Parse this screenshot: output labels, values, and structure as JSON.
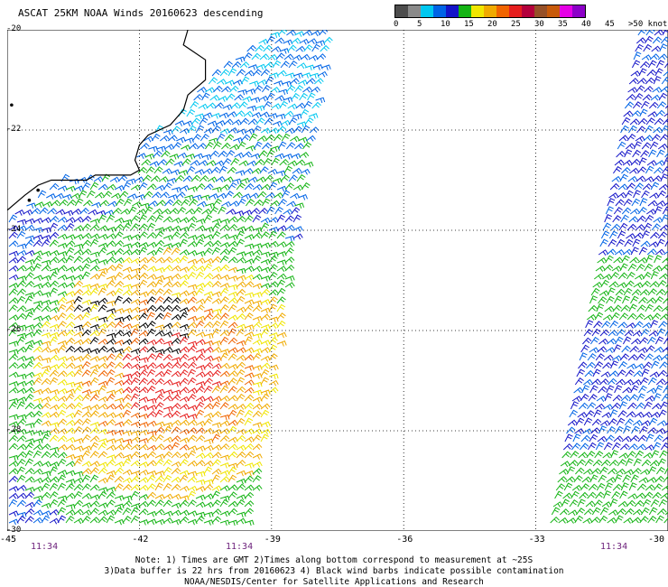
{
  "title": "ASCAT 25KM NOAA Winds 20160623 descending",
  "legend": {
    "labels": [
      "0",
      "5",
      "10",
      "15",
      "20",
      "25",
      "30",
      "35",
      "40",
      "45",
      ">50 knots"
    ],
    "colors": [
      "#4d4d4d",
      "#8a8a8a",
      "#00c8f0",
      "#0064e6",
      "#1414c8",
      "#14b414",
      "#f0e600",
      "#f0aa00",
      "#f06400",
      "#e61e1e",
      "#b4003c",
      "#965028",
      "#c85a0a",
      "#e600e6",
      "#8c00c8"
    ]
  },
  "map": {
    "lat_labels": [
      "-20",
      "-22",
      "-24",
      "-26",
      "-28",
      "-30"
    ],
    "lon_labels": [
      "-45",
      "-42",
      "-39",
      "-36",
      "-33",
      "-30"
    ],
    "lat_range": [
      -30,
      -20
    ],
    "lon_range": [
      -45,
      -30
    ],
    "coastline_color": "#000000",
    "grid": "dotted"
  },
  "pass_times": [
    "11:34",
    "11:34",
    "11:34"
  ],
  "notes": {
    "line1": "Note: 1) Times are GMT 2)Times along bottom correspond to measurement at ~25S",
    "line2": "3)Data buffer is 22 hrs from 20160623 4) Black wind barbs indicate possible contamination",
    "line3": "NOAA/NESDIS/Center for Satellite Applications and Research"
  }
}
